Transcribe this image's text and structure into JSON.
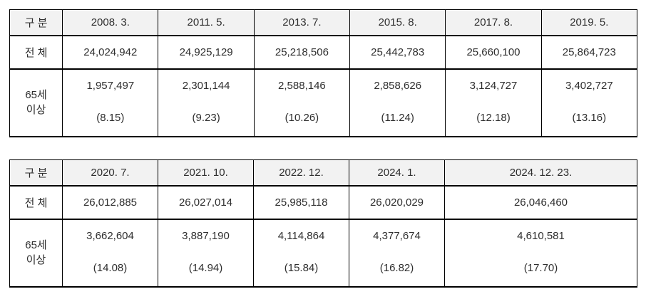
{
  "style": {
    "header_bg": "#f2f2f2",
    "border_color": "#000000",
    "text_color": "#2e2e2e"
  },
  "tables": [
    {
      "title": "population-table-2008-2019",
      "col_header_label": "구 분",
      "headers": [
        "2008. 3.",
        "2011. 5.",
        "2013. 7.",
        "2015. 8.",
        "2017. 8.",
        "2019. 5."
      ],
      "rows": {
        "total": {
          "label": "전 체",
          "values": [
            "24,024,942",
            "24,925,129",
            "25,218,506",
            "25,442,783",
            "25,660,100",
            "25,864,723"
          ]
        },
        "elderly": {
          "label": "65세\n이상",
          "counts": [
            "1,957,497",
            "2,301,144",
            "2,588,146",
            "2,858,626",
            "3,124,727",
            "3,402,727"
          ],
          "ratios": [
            "(8.15)",
            "(9.23)",
            "(10.26)",
            "(11.24)",
            "(12.18)",
            "(13.16)"
          ]
        }
      }
    },
    {
      "title": "population-table-2020-2024",
      "col_header_label": "구 분",
      "headers": [
        "2020. 7.",
        "2021. 10.",
        "2022. 12.",
        "2024. 1.",
        "2024. 12. 23."
      ],
      "rows": {
        "total": {
          "label": "전 체",
          "values": [
            "26,012,885",
            "26,027,014",
            "25,985,118",
            "26,020,029",
            "26,046,460"
          ]
        },
        "elderly": {
          "label": "65세\n이상",
          "counts": [
            "3,662,604",
            "3,887,190",
            "4,114,864",
            "4,377,674",
            "4,610,581"
          ],
          "ratios": [
            "(14.08)",
            "(14.94)",
            "(15.84)",
            "(16.82)",
            "(17.70)"
          ]
        }
      }
    }
  ]
}
